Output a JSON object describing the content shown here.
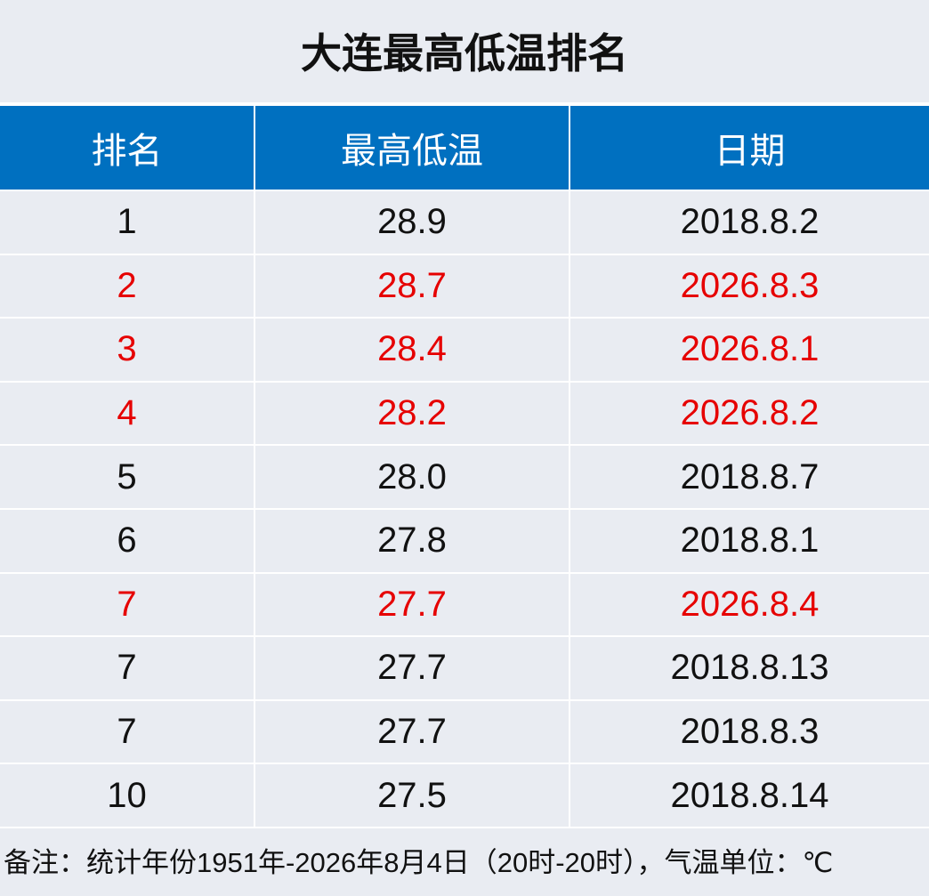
{
  "title": "大连最高低温排名",
  "table": {
    "headers": [
      "排名",
      "最高低温",
      "日期"
    ],
    "rows": [
      [
        "1",
        "28.9",
        "2018.8.2"
      ],
      [
        "2",
        "28.7",
        "2026.8.3"
      ],
      [
        "3",
        "28.4",
        "2026.8.1"
      ],
      [
        "4",
        "28.2",
        "2026.8.2"
      ],
      [
        "5",
        "28.0",
        "2018.8.7"
      ],
      [
        "6",
        "27.8",
        "2018.8.1"
      ],
      [
        "7",
        "27.7",
        "2026.8.4"
      ],
      [
        "7",
        "27.7",
        "2018.8.13"
      ],
      [
        "7",
        "27.7",
        "2018.8.3"
      ],
      [
        "10",
        "27.5",
        "2018.8.14"
      ]
    ],
    "row_colors": [
      "#111111",
      "#e60000",
      "#e60000",
      "#e60000",
      "#111111",
      "#111111",
      "#e60000",
      "#111111",
      "#111111",
      "#111111"
    ]
  },
  "note": "备注：统计年份1951年-2026年8月4日（20时-20时），气温单位：℃"
}
